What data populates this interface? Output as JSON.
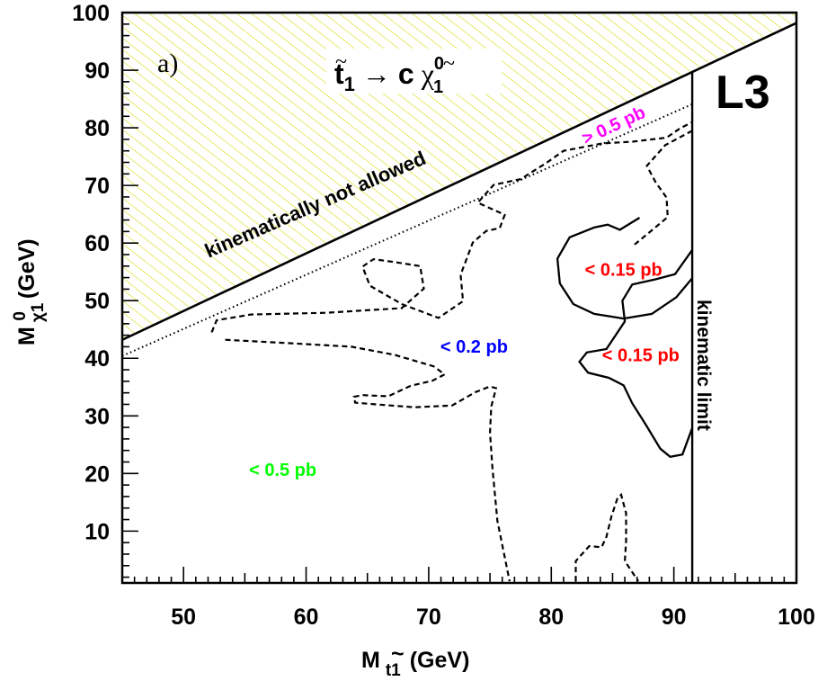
{
  "chart_data": {
    "type": "contour",
    "panel_label": "a)",
    "process": {
      "lhs_main": "t",
      "lhs_sub": "1",
      "arrow": "→",
      "rhs_c": "c",
      "rhs_main": "χ",
      "rhs_sub": "1",
      "rhs_sup": "0"
    },
    "experiment": "L3",
    "xlabel": {
      "main": "M",
      "sub": "t1",
      "tilde": "~",
      "unit": "(GeV)"
    },
    "ylabel": {
      "main": "M",
      "sub": "χ1",
      "sup": "0",
      "unit": "(GeV)"
    },
    "xlim": [
      45,
      100
    ],
    "ylim": [
      1,
      100
    ],
    "x_ticks": [
      50,
      60,
      70,
      80,
      90,
      100
    ],
    "y_ticks": [
      10,
      20,
      30,
      40,
      50,
      60,
      70,
      80,
      90,
      100
    ],
    "grid": false,
    "kinematic_boundary": {
      "x": [
        45,
        100
      ],
      "y": [
        43.2,
        98.2
      ]
    },
    "kinematic_limit_x": 91.5,
    "dotted_boundary": {
      "x": [
        45,
        91.5
      ],
      "y": [
        40.4,
        84.1
      ]
    },
    "excluded_region_label": "kinematically not allowed",
    "kinematic_limit_label": "kinematic limit",
    "region_labels": [
      {
        "text": "> 0.5  pb",
        "x": 85.3,
        "y": 79.5,
        "color": "#ff00ff",
        "rotate": -25
      },
      {
        "text": "< 0.2 pb",
        "x": 73.7,
        "y": 41,
        "color": "#0000ff",
        "rotate": 0
      },
      {
        "text": "< 0.15 pb",
        "x": 85.9,
        "y": 54.3,
        "color": "#ff0000",
        "rotate": 0
      },
      {
        "text": "< 0.15 pb",
        "x": 87.3,
        "y": 39.5,
        "color": "#ff0000",
        "rotate": 0
      },
      {
        "text": "< 0.5 pb",
        "x": 58.1,
        "y": 19.6,
        "color": "#00ff00",
        "rotate": 0
      }
    ],
    "contours": [
      {
        "name": "0.2 pb",
        "style": "dashed",
        "closed": false,
        "points": [
          [
            52.3,
            44.5
          ],
          [
            52.7,
            46.6
          ],
          [
            55.5,
            47.6
          ],
          [
            61.6,
            47.9
          ],
          [
            67.8,
            48.7
          ],
          [
            69.6,
            52.1
          ],
          [
            69.3,
            56.0
          ],
          [
            67.5,
            56.6
          ],
          [
            65.5,
            57.2
          ],
          [
            64.6,
            55.9
          ],
          [
            65.2,
            52.6
          ],
          [
            67.8,
            49.4
          ],
          [
            70.8,
            47.0
          ],
          [
            72.8,
            49.9
          ],
          [
            72.6,
            54.5
          ],
          [
            73.6,
            60.1
          ],
          [
            74.7,
            62.1
          ],
          [
            75.8,
            62.6
          ],
          [
            76.2,
            64.9
          ],
          [
            74.0,
            67.0
          ],
          [
            75.3,
            70.1
          ],
          [
            77.5,
            71.1
          ],
          [
            79.6,
            73.9
          ],
          [
            81.0,
            76.0
          ],
          [
            84.2,
            77.3
          ],
          [
            86.6,
            77.6
          ],
          [
            89.4,
            78.3
          ],
          [
            90.5,
            79.9
          ],
          [
            91.5,
            81.0
          ]
        ]
      },
      {
        "name": "0.2 pb",
        "style": "dashed",
        "closed": false,
        "points": [
          [
            91.5,
            79.5
          ],
          [
            89.3,
            77.0
          ],
          [
            87.8,
            73.4
          ],
          [
            88.5,
            70.6
          ],
          [
            89.4,
            67.9
          ],
          [
            89.5,
            64.5
          ],
          [
            87.8,
            61.5
          ],
          [
            86.6,
            59.4
          ]
        ]
      },
      {
        "name": "0.2 pb",
        "style": "dashed",
        "closed": false,
        "points": [
          [
            53.4,
            43.2
          ],
          [
            58.8,
            42.6
          ],
          [
            63.7,
            42.0
          ],
          [
            67.2,
            40.6
          ],
          [
            70.4,
            38.6
          ],
          [
            71.3,
            37.2
          ],
          [
            70.3,
            36.1
          ],
          [
            68.5,
            35.2
          ],
          [
            66.7,
            33.4
          ],
          [
            64.6,
            33.6
          ],
          [
            63.9,
            33.3
          ],
          [
            64.0,
            32.3
          ],
          [
            65.7,
            32.0
          ],
          [
            68.8,
            31.5
          ],
          [
            71.9,
            31.8
          ],
          [
            73.8,
            34.1
          ],
          [
            75.0,
            35.1
          ],
          [
            75.5,
            34.8
          ],
          [
            75.1,
            31.6
          ],
          [
            75.0,
            27.1
          ],
          [
            75.2,
            21.0
          ],
          [
            75.6,
            11.8
          ],
          [
            76.6,
            1.3
          ]
        ]
      },
      {
        "name": "0.2 pb",
        "style": "dashed",
        "closed": false,
        "points": [
          [
            82.0,
            1.3
          ],
          [
            82.0,
            4.8
          ],
          [
            83.1,
            7.4
          ],
          [
            84.1,
            7.2
          ],
          [
            84.5,
            9.0
          ],
          [
            84.9,
            12.5
          ],
          [
            85.4,
            15.7
          ],
          [
            85.7,
            16.3
          ],
          [
            86.1,
            13.1
          ],
          [
            86.1,
            8.3
          ],
          [
            86.0,
            4.8
          ],
          [
            87.1,
            1.3
          ]
        ]
      },
      {
        "name": "0.15 pb",
        "style": "solid",
        "closed": false,
        "points": [
          [
            87.2,
            64.4
          ],
          [
            85.6,
            62.3
          ],
          [
            84.6,
            63.2
          ],
          [
            83.5,
            62.7
          ],
          [
            81.5,
            61.0
          ],
          [
            80.5,
            57.3
          ],
          [
            80.7,
            53.0
          ],
          [
            81.8,
            49.4
          ],
          [
            83.5,
            47.7
          ],
          [
            85.9,
            46.9
          ],
          [
            88.2,
            47.7
          ],
          [
            90.2,
            50.6
          ],
          [
            91.5,
            53.9
          ]
        ]
      },
      {
        "name": "0.15 pb",
        "style": "solid",
        "closed": false,
        "points": [
          [
            91.5,
            58.8
          ],
          [
            90.1,
            54.6
          ],
          [
            88.5,
            53.7
          ],
          [
            86.6,
            52.8
          ],
          [
            85.8,
            50.0
          ],
          [
            86.0,
            46.4
          ],
          [
            84.5,
            41.6
          ],
          [
            82.9,
            41.0
          ],
          [
            82.3,
            39.4
          ],
          [
            83.0,
            37.5
          ],
          [
            84.7,
            36.6
          ],
          [
            85.9,
            35.3
          ],
          [
            86.6,
            32.2
          ],
          [
            87.7,
            28.5
          ],
          [
            88.9,
            24.3
          ],
          [
            89.7,
            22.9
          ],
          [
            90.7,
            23.3
          ],
          [
            91.5,
            27.9
          ]
        ]
      }
    ]
  }
}
